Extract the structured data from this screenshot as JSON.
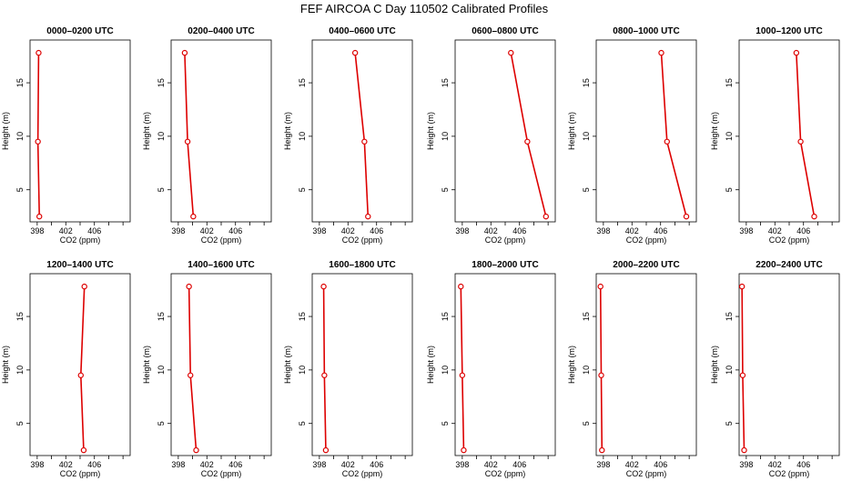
{
  "figure_title": "FEF AIRCOA C  Day 110502  Calibrated Profiles",
  "chart_data": [
    {
      "type": "line",
      "title": "0000–0200 UTC",
      "xlabel": "CO2 (ppm)",
      "ylabel": "Height (m)",
      "xlim": [
        397,
        411
      ],
      "ylim": [
        2,
        19
      ],
      "xticks": [
        "398",
        "402",
        "406"
      ],
      "yticks": [
        "5",
        "10",
        "15"
      ],
      "series": [
        {
          "x": [
            398.3,
            398.1,
            398.2
          ],
          "y": [
            2.5,
            9.5,
            17.8
          ]
        }
      ],
      "color": "#dd0000"
    },
    {
      "type": "line",
      "title": "0200–0400 UTC",
      "xlabel": "CO2 (ppm)",
      "ylabel": "Height (m)",
      "xlim": [
        397,
        411
      ],
      "ylim": [
        2,
        19
      ],
      "xticks": [
        "398",
        "402",
        "406"
      ],
      "yticks": [
        "5",
        "10",
        "15"
      ],
      "series": [
        {
          "x": [
            400.1,
            399.3,
            398.9
          ],
          "y": [
            2.5,
            9.5,
            17.8
          ]
        }
      ],
      "color": "#dd0000"
    },
    {
      "type": "line",
      "title": "0400–0600 UTC",
      "xlabel": "CO2 (ppm)",
      "ylabel": "Height (m)",
      "xlim": [
        397,
        411
      ],
      "ylim": [
        2,
        19
      ],
      "xticks": [
        "398",
        "402",
        "406"
      ],
      "yticks": [
        "5",
        "10",
        "15"
      ],
      "series": [
        {
          "x": [
            404.8,
            404.3,
            403.0
          ],
          "y": [
            2.5,
            9.5,
            17.8
          ]
        }
      ],
      "color": "#dd0000"
    },
    {
      "type": "line",
      "title": "0600–0800 UTC",
      "xlabel": "CO2 (ppm)",
      "ylabel": "Height (m)",
      "xlim": [
        397,
        411
      ],
      "ylim": [
        2,
        19
      ],
      "xticks": [
        "398",
        "402",
        "406"
      ],
      "yticks": [
        "5",
        "10",
        "15"
      ],
      "series": [
        {
          "x": [
            409.7,
            407.1,
            404.8
          ],
          "y": [
            2.5,
            9.5,
            17.8
          ]
        }
      ],
      "color": "#dd0000"
    },
    {
      "type": "line",
      "title": "0800–1000 UTC",
      "xlabel": "CO2 (ppm)",
      "ylabel": "Height (m)",
      "xlim": [
        397,
        411
      ],
      "ylim": [
        2,
        19
      ],
      "xticks": [
        "398",
        "402",
        "406"
      ],
      "yticks": [
        "5",
        "10",
        "15"
      ],
      "series": [
        {
          "x": [
            409.6,
            406.9,
            406.1
          ],
          "y": [
            2.5,
            9.5,
            17.8
          ]
        }
      ],
      "color": "#dd0000"
    },
    {
      "type": "line",
      "title": "1000–1200 UTC",
      "xlabel": "CO2 (ppm)",
      "ylabel": "Height (m)",
      "xlim": [
        397,
        411
      ],
      "ylim": [
        2,
        19
      ],
      "xticks": [
        "398",
        "402",
        "406"
      ],
      "yticks": [
        "5",
        "10",
        "15"
      ],
      "series": [
        {
          "x": [
            407.5,
            405.6,
            405.0
          ],
          "y": [
            2.5,
            9.5,
            17.8
          ]
        }
      ],
      "color": "#dd0000"
    },
    {
      "type": "line",
      "title": "1200–1400 UTC",
      "xlabel": "CO2 (ppm)",
      "ylabel": "Height (m)",
      "xlim": [
        397,
        411
      ],
      "ylim": [
        2,
        19
      ],
      "xticks": [
        "398",
        "402",
        "406"
      ],
      "yticks": [
        "5",
        "10",
        "15"
      ],
      "series": [
        {
          "x": [
            404.5,
            404.1,
            404.6
          ],
          "y": [
            2.5,
            9.5,
            17.8
          ]
        }
      ],
      "color": "#dd0000"
    },
    {
      "type": "line",
      "title": "1400–1600 UTC",
      "xlabel": "CO2 (ppm)",
      "ylabel": "Height (m)",
      "xlim": [
        397,
        411
      ],
      "ylim": [
        2,
        19
      ],
      "xticks": [
        "398",
        "402",
        "406"
      ],
      "yticks": [
        "5",
        "10",
        "15"
      ],
      "series": [
        {
          "x": [
            400.5,
            399.7,
            399.5
          ],
          "y": [
            2.5,
            9.5,
            17.8
          ]
        }
      ],
      "color": "#dd0000"
    },
    {
      "type": "line",
      "title": "1600–1800 UTC",
      "xlabel": "CO2 (ppm)",
      "ylabel": "Height (m)",
      "xlim": [
        397,
        411
      ],
      "ylim": [
        2,
        19
      ],
      "xticks": [
        "398",
        "402",
        "406"
      ],
      "yticks": [
        "5",
        "10",
        "15"
      ],
      "series": [
        {
          "x": [
            398.9,
            398.7,
            398.6
          ],
          "y": [
            2.5,
            9.5,
            17.8
          ]
        }
      ],
      "color": "#dd0000"
    },
    {
      "type": "line",
      "title": "1800–2000 UTC",
      "xlabel": "CO2 (ppm)",
      "ylabel": "Height (m)",
      "xlim": [
        397,
        411
      ],
      "ylim": [
        2,
        19
      ],
      "xticks": [
        "398",
        "402",
        "406"
      ],
      "yticks": [
        "5",
        "10",
        "15"
      ],
      "series": [
        {
          "x": [
            398.2,
            398.0,
            397.8
          ],
          "y": [
            2.5,
            9.5,
            17.8
          ]
        }
      ],
      "color": "#dd0000"
    },
    {
      "type": "line",
      "title": "2000–2200 UTC",
      "xlabel": "CO2 (ppm)",
      "ylabel": "Height (m)",
      "xlim": [
        397,
        411
      ],
      "ylim": [
        2,
        19
      ],
      "xticks": [
        "398",
        "402",
        "406"
      ],
      "yticks": [
        "5",
        "10",
        "15"
      ],
      "series": [
        {
          "x": [
            397.8,
            397.7,
            397.6
          ],
          "y": [
            2.5,
            9.5,
            17.8
          ]
        }
      ],
      "color": "#dd0000"
    },
    {
      "type": "line",
      "title": "2200–2400 UTC",
      "xlabel": "CO2 (ppm)",
      "ylabel": "Height (m)",
      "xlim": [
        397,
        411
      ],
      "ylim": [
        2,
        19
      ],
      "xticks": [
        "398",
        "402",
        "406"
      ],
      "yticks": [
        "5",
        "10",
        "15"
      ],
      "series": [
        {
          "x": [
            397.7,
            397.5,
            397.4
          ],
          "y": [
            2.5,
            9.5,
            17.8
          ]
        }
      ],
      "color": "#dd0000"
    }
  ]
}
